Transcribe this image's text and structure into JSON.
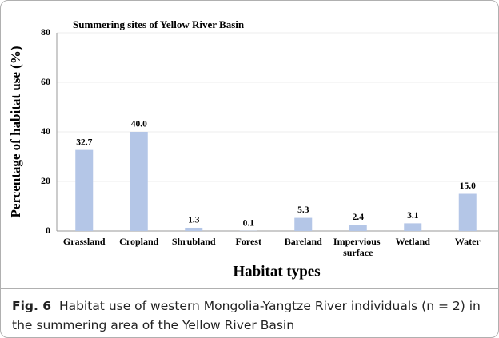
{
  "chart_data": {
    "type": "bar",
    "title": "Summering sites of Yellow River Basin",
    "y_label": "Percentage of habitat use (%)",
    "x_label": "Habitat types",
    "categories": [
      "Grassland",
      "Cropland",
      "Shrubland",
      "Forest",
      "Bareland",
      "Impervious surface",
      "Wetland",
      "Water"
    ],
    "values": [
      32.7,
      40.0,
      1.3,
      0.1,
      5.3,
      2.4,
      3.1,
      15.0
    ],
    "value_labels": [
      "32.7",
      "40.0",
      "1.3",
      "0.1",
      "5.3",
      "2.4",
      "3.1",
      "15.0"
    ],
    "color": "#b4c6e7",
    "ylim": [
      0,
      80
    ],
    "yticks": [
      0,
      20,
      40,
      60,
      80
    ],
    "grid": true
  },
  "caption": {
    "label": "Fig. 6",
    "text": "Habitat use of western Mongolia-Yangtze River individuals (n = 2) in the summering area of the Yellow River Basin"
  }
}
